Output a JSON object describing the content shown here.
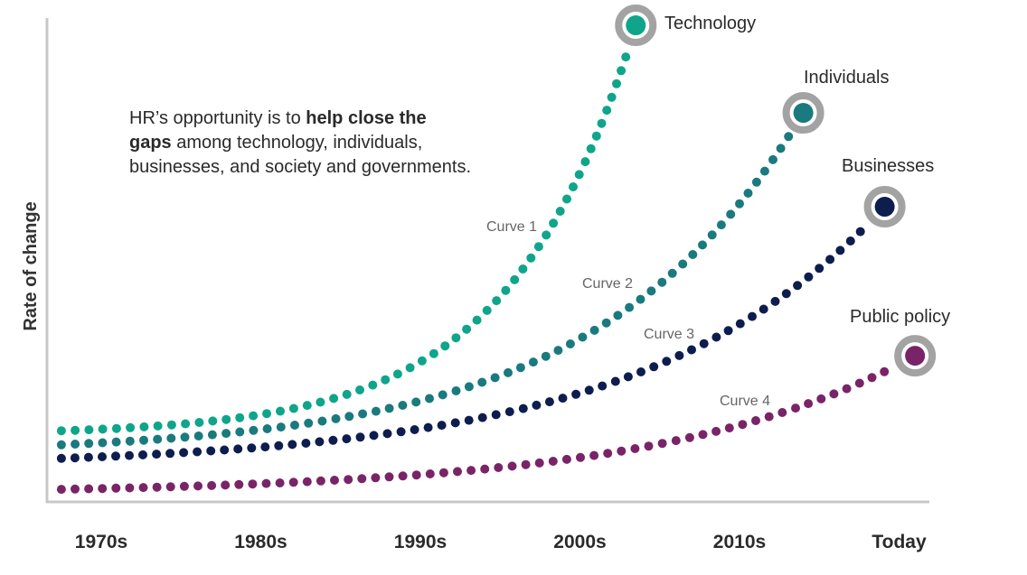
{
  "chart_data": {
    "type": "line",
    "style": "dotted-exponential",
    "title": "",
    "xlabel": "",
    "ylabel": "Rate of change",
    "x_ticks": [
      "1970s",
      "1980s",
      "1990s",
      "2000s",
      "2010s",
      "Today"
    ],
    "x_unit": "decades since 1970s",
    "xlim": [
      -0.3,
      5.2
    ],
    "ylim": [
      0,
      100
    ],
    "grid": false,
    "series": [
      {
        "name": "Technology",
        "curve_label": "Curve 1",
        "color": "#0ea58b",
        "x_start": -0.25,
        "x_end": 3.35,
        "y_start": 14.7,
        "y_end": 98.5,
        "growth": 4.6
      },
      {
        "name": "Individuals",
        "curve_label": "Curve 2",
        "color": "#1a7a7e",
        "x_start": -0.25,
        "x_end": 4.4,
        "y_start": 11.8,
        "y_end": 80.4,
        "growth": 3.6
      },
      {
        "name": "Businesses",
        "curve_label": "Curve 3",
        "color": "#0d1d4e",
        "x_start": -0.25,
        "x_end": 4.91,
        "y_start": 9.0,
        "y_end": 61.0,
        "growth": 3.4
      },
      {
        "name": "Public policy",
        "curve_label": "Curve 4",
        "color": "#7a2468",
        "x_start": -0.25,
        "x_end": 5.1,
        "y_start": 2.6,
        "y_end": 30.2,
        "growth": 3.4
      }
    ]
  },
  "annotation": {
    "part1": "HR’s opportunity is to ",
    "bold": "help close the gaps",
    "part2": " among technology, individuals, businesses, and society and governments."
  }
}
